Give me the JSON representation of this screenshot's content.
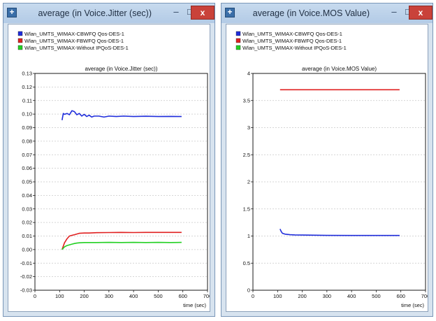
{
  "windows": [
    {
      "title": "average (in Voice.Jitter (sec))",
      "controls": {
        "minimize": "–",
        "maximize": "□",
        "close": "x"
      }
    },
    {
      "title": "average (in Voice.MOS Value)",
      "controls": {
        "minimize": "–",
        "maximize": "□",
        "close": "x"
      }
    }
  ],
  "icons": {
    "app": "app-icon"
  },
  "chart_data": [
    {
      "type": "line",
      "title": "average (in Voice.Jitter (sec))",
      "xlabel": "time (sec)",
      "ylabel": "",
      "xlim": [
        0,
        700
      ],
      "ylim": [
        -0.03,
        0.13
      ],
      "xticks": [
        0,
        100,
        200,
        300,
        400,
        500,
        600,
        700
      ],
      "yticks": [
        -0.03,
        -0.02,
        -0.01,
        0.0,
        0.01,
        0.02,
        0.03,
        0.04,
        0.05,
        0.06,
        0.07,
        0.08,
        0.09,
        0.1,
        0.11,
        0.12,
        0.13
      ],
      "ytick_labels": [
        "-0.03",
        "-0.02",
        "-0.01",
        "0.00",
        "0.01",
        "0.02",
        "0.03",
        "0.04",
        "0.05",
        "0.06",
        "0.07",
        "0.08",
        "0.09",
        "0.10",
        "0.11",
        "0.12",
        "0.13"
      ],
      "grid": "horizontal",
      "legend_position": "top-left",
      "series": [
        {
          "name": "Wlan_UMTS_WIMAX-CBWFQ Qos-DES-1",
          "color": "#1f2ddb",
          "x": [
            110,
            115,
            120,
            130,
            140,
            150,
            160,
            170,
            180,
            190,
            200,
            210,
            220,
            230,
            240,
            260,
            280,
            300,
            330,
            360,
            400,
            450,
            500,
            550,
            595
          ],
          "y": [
            0.0955,
            0.1005,
            0.0998,
            0.1005,
            0.0995,
            0.1025,
            0.1018,
            0.0995,
            0.1005,
            0.0985,
            0.0998,
            0.0982,
            0.0992,
            0.0978,
            0.0985,
            0.0985,
            0.0978,
            0.0985,
            0.0982,
            0.0985,
            0.0982,
            0.0984,
            0.0982,
            0.0983,
            0.0982
          ]
        },
        {
          "name": "Wlan_UMTS_WIMAX-FBWFQ Qos-DES-1",
          "color": "#e02020",
          "x": [
            110,
            120,
            130,
            140,
            150,
            160,
            170,
            180,
            200,
            220,
            250,
            300,
            350,
            400,
            450,
            500,
            550,
            595
          ],
          "y": [
            0.0,
            0.005,
            0.008,
            0.01,
            0.0105,
            0.011,
            0.0115,
            0.012,
            0.0122,
            0.0122,
            0.0125,
            0.0126,
            0.0127,
            0.0126,
            0.0127,
            0.0127,
            0.0127,
            0.0127
          ]
        },
        {
          "name": "Wlan_UMTS_WIMAX-Without IPQoS-DES-1",
          "color": "#22d022",
          "x": [
            110,
            120,
            130,
            140,
            150,
            160,
            170,
            180,
            200,
            220,
            250,
            300,
            350,
            400,
            450,
            500,
            550,
            595
          ],
          "y": [
            0.0,
            0.002,
            0.003,
            0.0035,
            0.004,
            0.0045,
            0.0048,
            0.005,
            0.0052,
            0.0052,
            0.0052,
            0.0053,
            0.0052,
            0.0053,
            0.0052,
            0.0053,
            0.0052,
            0.0053
          ]
        }
      ]
    },
    {
      "type": "line",
      "title": "average (in Voice.MOS Value)",
      "xlabel": "time (sec)",
      "ylabel": "",
      "xlim": [
        0,
        700
      ],
      "ylim": [
        0,
        4
      ],
      "xticks": [
        0,
        100,
        200,
        300,
        400,
        500,
        600,
        700
      ],
      "yticks": [
        0,
        0.5,
        1,
        1.5,
        2,
        2.5,
        3,
        3.5,
        4
      ],
      "ytick_labels": [
        "0",
        "0.5",
        "1",
        "1.5",
        "2",
        "2.5",
        "3",
        "3.5",
        "4"
      ],
      "grid": "horizontal",
      "legend_position": "top-left",
      "series": [
        {
          "name": "Wlan_UMTS_WIMAX-CBWFQ Qos-DES-1",
          "color": "#1f2ddb",
          "x": [
            110,
            115,
            120,
            130,
            140,
            150,
            170,
            200,
            250,
            300,
            400,
            500,
            595
          ],
          "y": [
            1.13,
            1.08,
            1.05,
            1.035,
            1.03,
            1.025,
            1.02,
            1.018,
            1.015,
            1.012,
            1.01,
            1.01,
            1.01
          ]
        },
        {
          "name": "Wlan_UMTS_WIMAX-FBWFQ Qos-DES-1",
          "color": "#e02020",
          "x": [
            110,
            200,
            300,
            400,
            500,
            595
          ],
          "y": [
            3.7,
            3.7,
            3.7,
            3.7,
            3.7,
            3.7
          ]
        },
        {
          "name": "Wlan_UMTS_WIMAX-Without IPQoS-DES-1",
          "color": "#22d022",
          "x": [],
          "y": []
        }
      ]
    }
  ]
}
